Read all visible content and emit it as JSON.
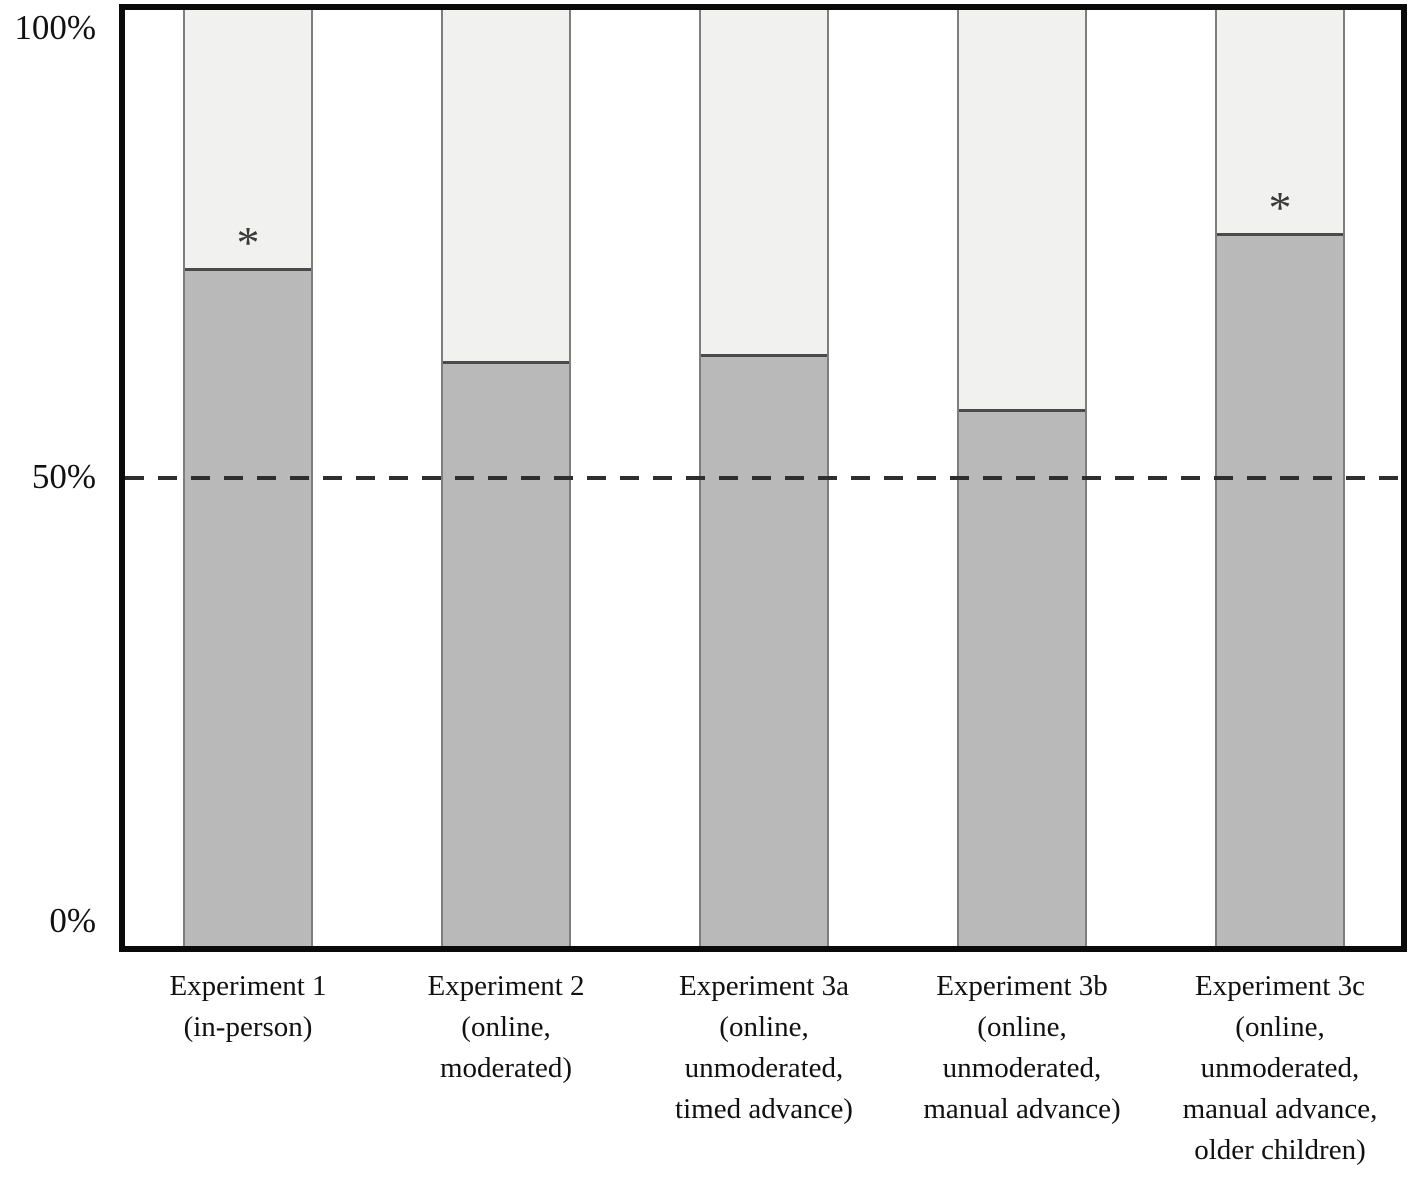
{
  "figure": {
    "y_axis": {
      "tick_labels": {
        "top": "100%",
        "middle": "50%",
        "bottom": "0%"
      }
    }
  },
  "chart_data": {
    "type": "bar",
    "stacked": true,
    "title": "",
    "xlabel": "",
    "ylabel": "",
    "ylim": [
      0,
      100
    ],
    "yticks": [
      "0%",
      "50%",
      "100%"
    ],
    "grid": false,
    "legend": false,
    "reference_line": {
      "value": 50,
      "style": "dashed"
    },
    "categories": [
      "Experiment 1 (in-person)",
      "Experiment 2 (online, moderated)",
      "Experiment 3a (online, unmoderated, timed advance)",
      "Experiment 3b (online, unmoderated, manual advance)",
      "Experiment 3c (online, unmoderated, manual advance, older children)"
    ],
    "category_label_lines": [
      [
        "Experiment 1",
        "(in-person)"
      ],
      [
        "Experiment 2",
        "(online,",
        "moderated)"
      ],
      [
        "Experiment 3a",
        "(online,",
        "unmoderated,",
        "timed advance)"
      ],
      [
        "Experiment 3b",
        "(online,",
        "unmoderated,",
        "manual advance)"
      ],
      [
        "Experiment 3c",
        "(online,",
        "unmoderated,",
        "manual advance,",
        "older children)"
      ]
    ],
    "series": [
      {
        "name": "proportion correct (dark lower segment)",
        "values": [
          72.4,
          62.5,
          63.3,
          57.4,
          76.2
        ],
        "color": "#b9b9b9"
      },
      {
        "name": "remainder to 100% (light upper segment)",
        "values": [
          27.6,
          37.5,
          36.7,
          42.6,
          23.8
        ],
        "color": "#f1f1f0"
      }
    ],
    "significance_markers": {
      "symbol": "*",
      "category_indexes": [
        0,
        4
      ]
    }
  },
  "colors": {
    "bar_lower_fill": "#b9b9b9",
    "bar_upper_fill": "#f1f1f0",
    "bar_outline": "#7d7d7d",
    "segment_divider": "#4a4a4a",
    "frame": "#0a0a0a",
    "dashed_line": "#2e2e2e",
    "text": "#111111"
  }
}
